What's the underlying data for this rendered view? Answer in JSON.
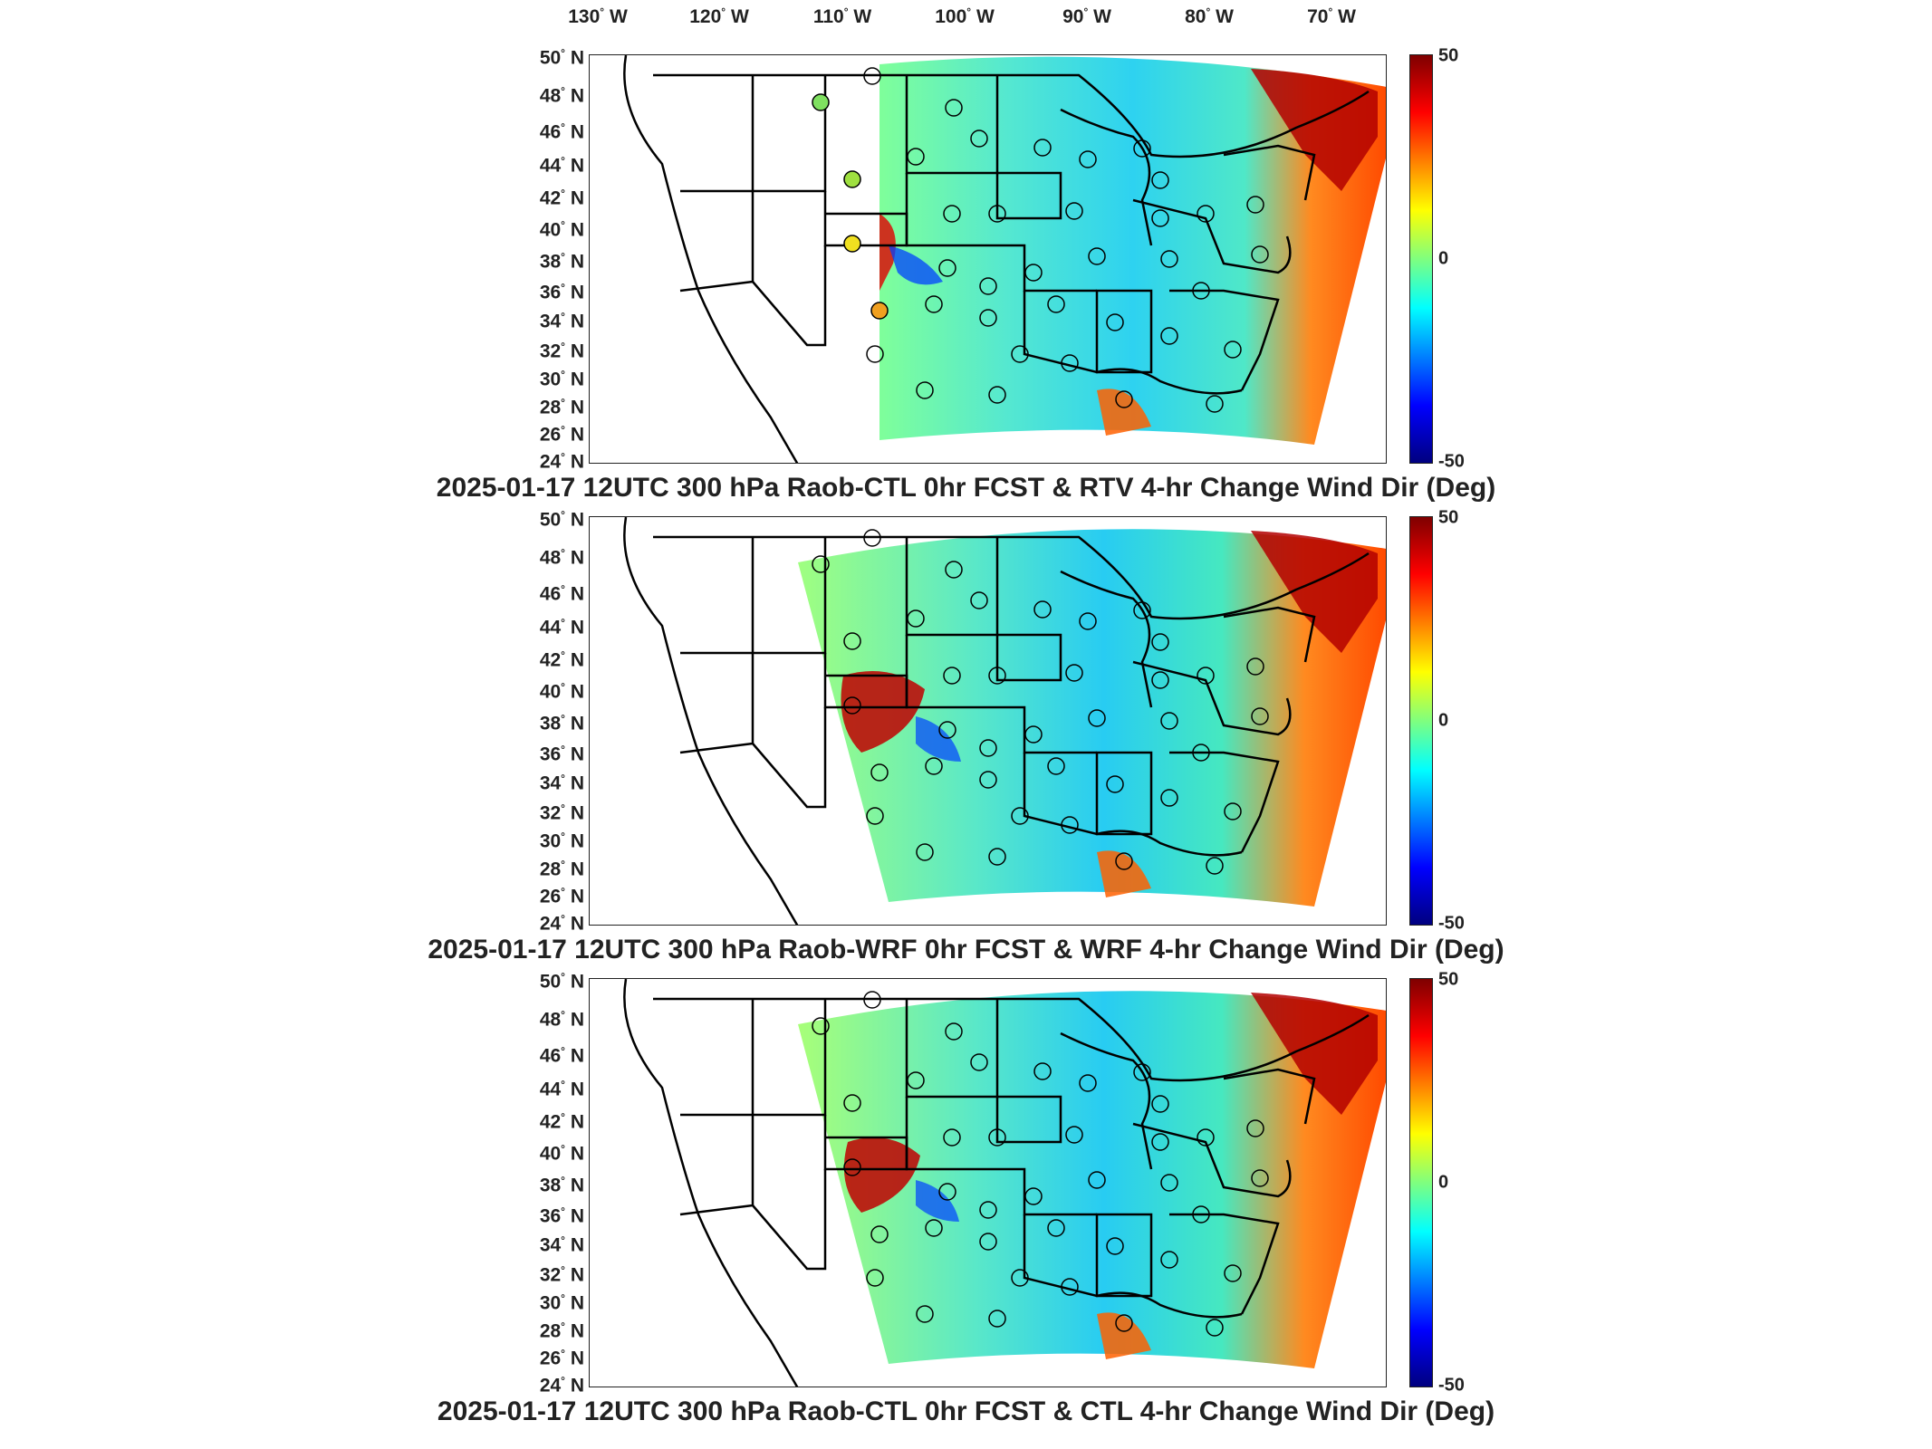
{
  "longitude_labels": [
    {
      "value": "130",
      "suffix": "W"
    },
    {
      "value": "120",
      "suffix": "W"
    },
    {
      "value": "110",
      "suffix": "W"
    },
    {
      "value": "100",
      "suffix": "W"
    },
    {
      "value": "90",
      "suffix": "W"
    },
    {
      "value": "80",
      "suffix": "W"
    },
    {
      "value": "70",
      "suffix": "W"
    }
  ],
  "latitude_labels": [
    "50",
    "48",
    "46",
    "44",
    "42",
    "40",
    "38",
    "36",
    "34",
    "32",
    "30",
    "28",
    "26",
    "24"
  ],
  "lat_suffix": "N",
  "colorbar": {
    "max": "50",
    "mid": "0",
    "min": "-50",
    "colors": [
      "#7f0000",
      "#ff0000",
      "#ff7f00",
      "#ffff00",
      "#7fff7f",
      "#00ffff",
      "#007fff",
      "#0000ff",
      "#00007f"
    ]
  },
  "panels": [
    {
      "title": "2025-01-17 12UTC 300 hPa Raob-CTL 0hr FCST & RTV 4-hr Change Wind Dir (Deg)"
    },
    {
      "title": "2025-01-17 12UTC 300 hPa Raob-WRF 0hr FCST & WRF 4-hr Change Wind Dir (Deg)"
    },
    {
      "title": "2025-01-17 12UTC 300 hPa Raob-CTL 0hr FCST & CTL 4-hr Change Wind Dir (Deg)"
    }
  ]
}
